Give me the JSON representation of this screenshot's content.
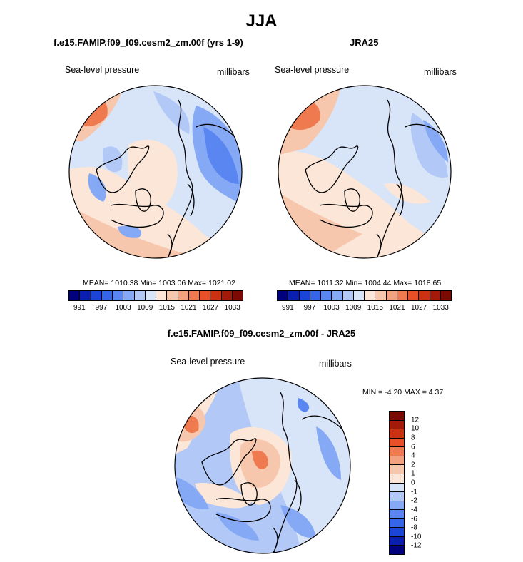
{
  "title": "JJA",
  "panels": [
    {
      "title": "f.e15.FAMIP.f09_f09.cesm2_zm.00f (yrs 1-9)",
      "left_label": "Sea-level pressure",
      "right_label": "millibars",
      "stats": "MEAN= 1010.38   Min= 1003.06   Max= 1021.02"
    },
    {
      "title": "JRA25",
      "left_label": "Sea-level pressure",
      "right_label": "millibars",
      "stats": "MEAN= 1011.32   Min= 1004.44   Max= 1018.65"
    },
    {
      "title": "f.e15.FAMIP.f09_f09.cesm2_zm.00f - JRA25",
      "left_label": "Sea-level pressure",
      "right_label": "millibars",
      "stats": "MIN =  -4.20 MAX =   4.37"
    }
  ],
  "colorbar_top": {
    "colors": [
      "#00007f",
      "#0a1fb0",
      "#1a45d6",
      "#3565e8",
      "#5a86f2",
      "#86a9f6",
      "#b2c9f7",
      "#d8e5f8",
      "#fbe6d8",
      "#f7c7ad",
      "#f2a27f",
      "#ef7a50",
      "#e85127",
      "#cc3112",
      "#a31a08",
      "#7a0a02"
    ],
    "labels": [
      "991",
      "997",
      "1003",
      "1009",
      "1015",
      "1021",
      "1027",
      "1033"
    ]
  },
  "colorbar_diff": {
    "colors": [
      "#7a0a02",
      "#a31a08",
      "#cc3112",
      "#e85127",
      "#ef7a50",
      "#f2a27f",
      "#f7c7ad",
      "#fbe6d8",
      "#d8e5f8",
      "#b2c9f7",
      "#86a9f6",
      "#5a86f2",
      "#3565e8",
      "#1a45d6",
      "#0a1fb0",
      "#00007f"
    ],
    "labels": [
      "12",
      "10",
      "8",
      "6",
      "4",
      "2",
      "1",
      "0",
      "-1",
      "-2",
      "-4",
      "-6",
      "-8",
      "-10",
      "-12"
    ]
  },
  "map_colors": {
    "border": "#000000",
    "land_outline": "#000000",
    "light_blue": "#d8e5f8",
    "mid_blue": "#b2c9f7",
    "blue": "#86a9f6",
    "deep_blue": "#5a86f2",
    "light_orange": "#fbe6d8",
    "orange": "#f7c7ad",
    "red_orange": "#ef7a50"
  }
}
